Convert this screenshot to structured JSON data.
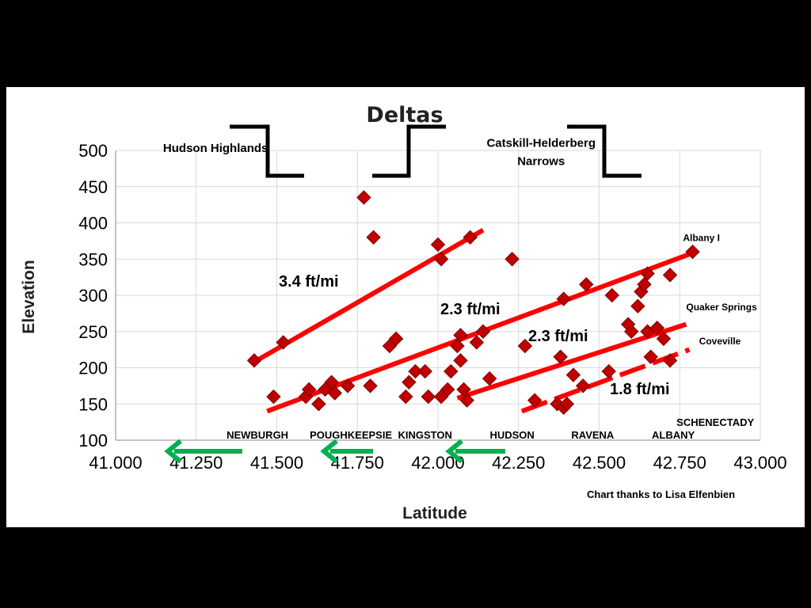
{
  "chart_data": {
    "type": "scatter",
    "title": "Deltas",
    "xlabel": "Latitude",
    "ylabel": "Elevation",
    "xlim": [
      41.0,
      43.0
    ],
    "ylim": [
      100,
      500
    ],
    "x_ticks": [
      "41.000",
      "41.250",
      "41.500",
      "41.750",
      "42.000",
      "42.250",
      "42.500",
      "42.750",
      "43.000"
    ],
    "y_ticks": [
      "100",
      "150",
      "200",
      "250",
      "300",
      "350",
      "400",
      "450",
      "500"
    ],
    "grid": true,
    "marker_color": "#c00000",
    "line_color": "#ff0000",
    "arrow_color": "#00b050",
    "points": [
      [
        41.43,
        210
      ],
      [
        41.49,
        160
      ],
      [
        41.52,
        235
      ],
      [
        41.59,
        160
      ],
      [
        41.6,
        170
      ],
      [
        41.63,
        150
      ],
      [
        41.65,
        170
      ],
      [
        41.67,
        180
      ],
      [
        41.68,
        165
      ],
      [
        41.72,
        175
      ],
      [
        41.77,
        435
      ],
      [
        41.79,
        175
      ],
      [
        41.8,
        380
      ],
      [
        41.85,
        230
      ],
      [
        41.87,
        240
      ],
      [
        41.9,
        160
      ],
      [
        41.91,
        180
      ],
      [
        41.93,
        195
      ],
      [
        41.96,
        195
      ],
      [
        41.97,
        160
      ],
      [
        42.0,
        370
      ],
      [
        42.01,
        160
      ],
      [
        42.01,
        350
      ],
      [
        42.03,
        170
      ],
      [
        42.04,
        195
      ],
      [
        42.06,
        230
      ],
      [
        42.07,
        245
      ],
      [
        42.07,
        210
      ],
      [
        42.08,
        170
      ],
      [
        42.09,
        155
      ],
      [
        42.1,
        380
      ],
      [
        42.12,
        235
      ],
      [
        42.14,
        250
      ],
      [
        42.16,
        185
      ],
      [
        42.23,
        350
      ],
      [
        42.27,
        230
      ],
      [
        42.3,
        155
      ],
      [
        42.37,
        150
      ],
      [
        42.38,
        215
      ],
      [
        42.39,
        295
      ],
      [
        42.39,
        145
      ],
      [
        42.4,
        150
      ],
      [
        42.42,
        190
      ],
      [
        42.45,
        175
      ],
      [
        42.46,
        315
      ],
      [
        42.53,
        195
      ],
      [
        42.54,
        300
      ],
      [
        42.59,
        260
      ],
      [
        42.6,
        250
      ],
      [
        42.62,
        285
      ],
      [
        42.63,
        305
      ],
      [
        42.64,
        315
      ],
      [
        42.65,
        330
      ],
      [
        42.65,
        250
      ],
      [
        42.66,
        215
      ],
      [
        42.68,
        255
      ],
      [
        42.7,
        240
      ],
      [
        42.72,
        210
      ],
      [
        42.72,
        328
      ],
      [
        42.79,
        360
      ]
    ],
    "trend_lines": [
      {
        "label": "3.4 ft/mi",
        "from": [
          41.43,
          208
        ],
        "to": [
          42.14,
          390
        ],
        "dashed": false
      },
      {
        "label": "2.3 ft/mi",
        "from": [
          41.47,
          140
        ],
        "to": [
          42.8,
          360
        ],
        "dashed": false
      },
      {
        "label": "2.3 ft/mi",
        "from": [
          42.06,
          158
        ],
        "to": [
          42.77,
          260
        ],
        "dashed": false
      },
      {
        "label": "1.8 ft/mi",
        "from": [
          42.26,
          140
        ],
        "to": [
          42.78,
          225
        ],
        "dashed": true
      }
    ],
    "terrace_labels": [
      {
        "text": "Albany I",
        "x": 42.76,
        "y": 375
      },
      {
        "text": "Quaker Springs",
        "x": 42.77,
        "y": 279
      },
      {
        "text": "Coveville",
        "x": 42.81,
        "y": 232
      }
    ],
    "region_labels": [
      {
        "lines": [
          "Hudson Highlands"
        ],
        "x": 41.31,
        "y": 498
      },
      {
        "lines": [
          "Catskill-Helderberg",
          "Narrows"
        ],
        "x": 42.32,
        "y": 505
      }
    ],
    "cities": [
      {
        "text": "NEWBURGH",
        "x": 41.44
      },
      {
        "text": "POUGHKEEPSIE",
        "x": 41.73
      },
      {
        "text": "KINGSTON",
        "x": 41.96
      },
      {
        "text": "HUDSON",
        "x": 42.23
      },
      {
        "text": "RAVENA",
        "x": 42.48
      },
      {
        "text": "ALBANY",
        "x": 42.73
      }
    ],
    "extra_city": {
      "text": "SCHENECTADY",
      "x": 42.74,
      "y": 126
    },
    "credit": "Chart thanks to Lisa Elfenbien"
  }
}
